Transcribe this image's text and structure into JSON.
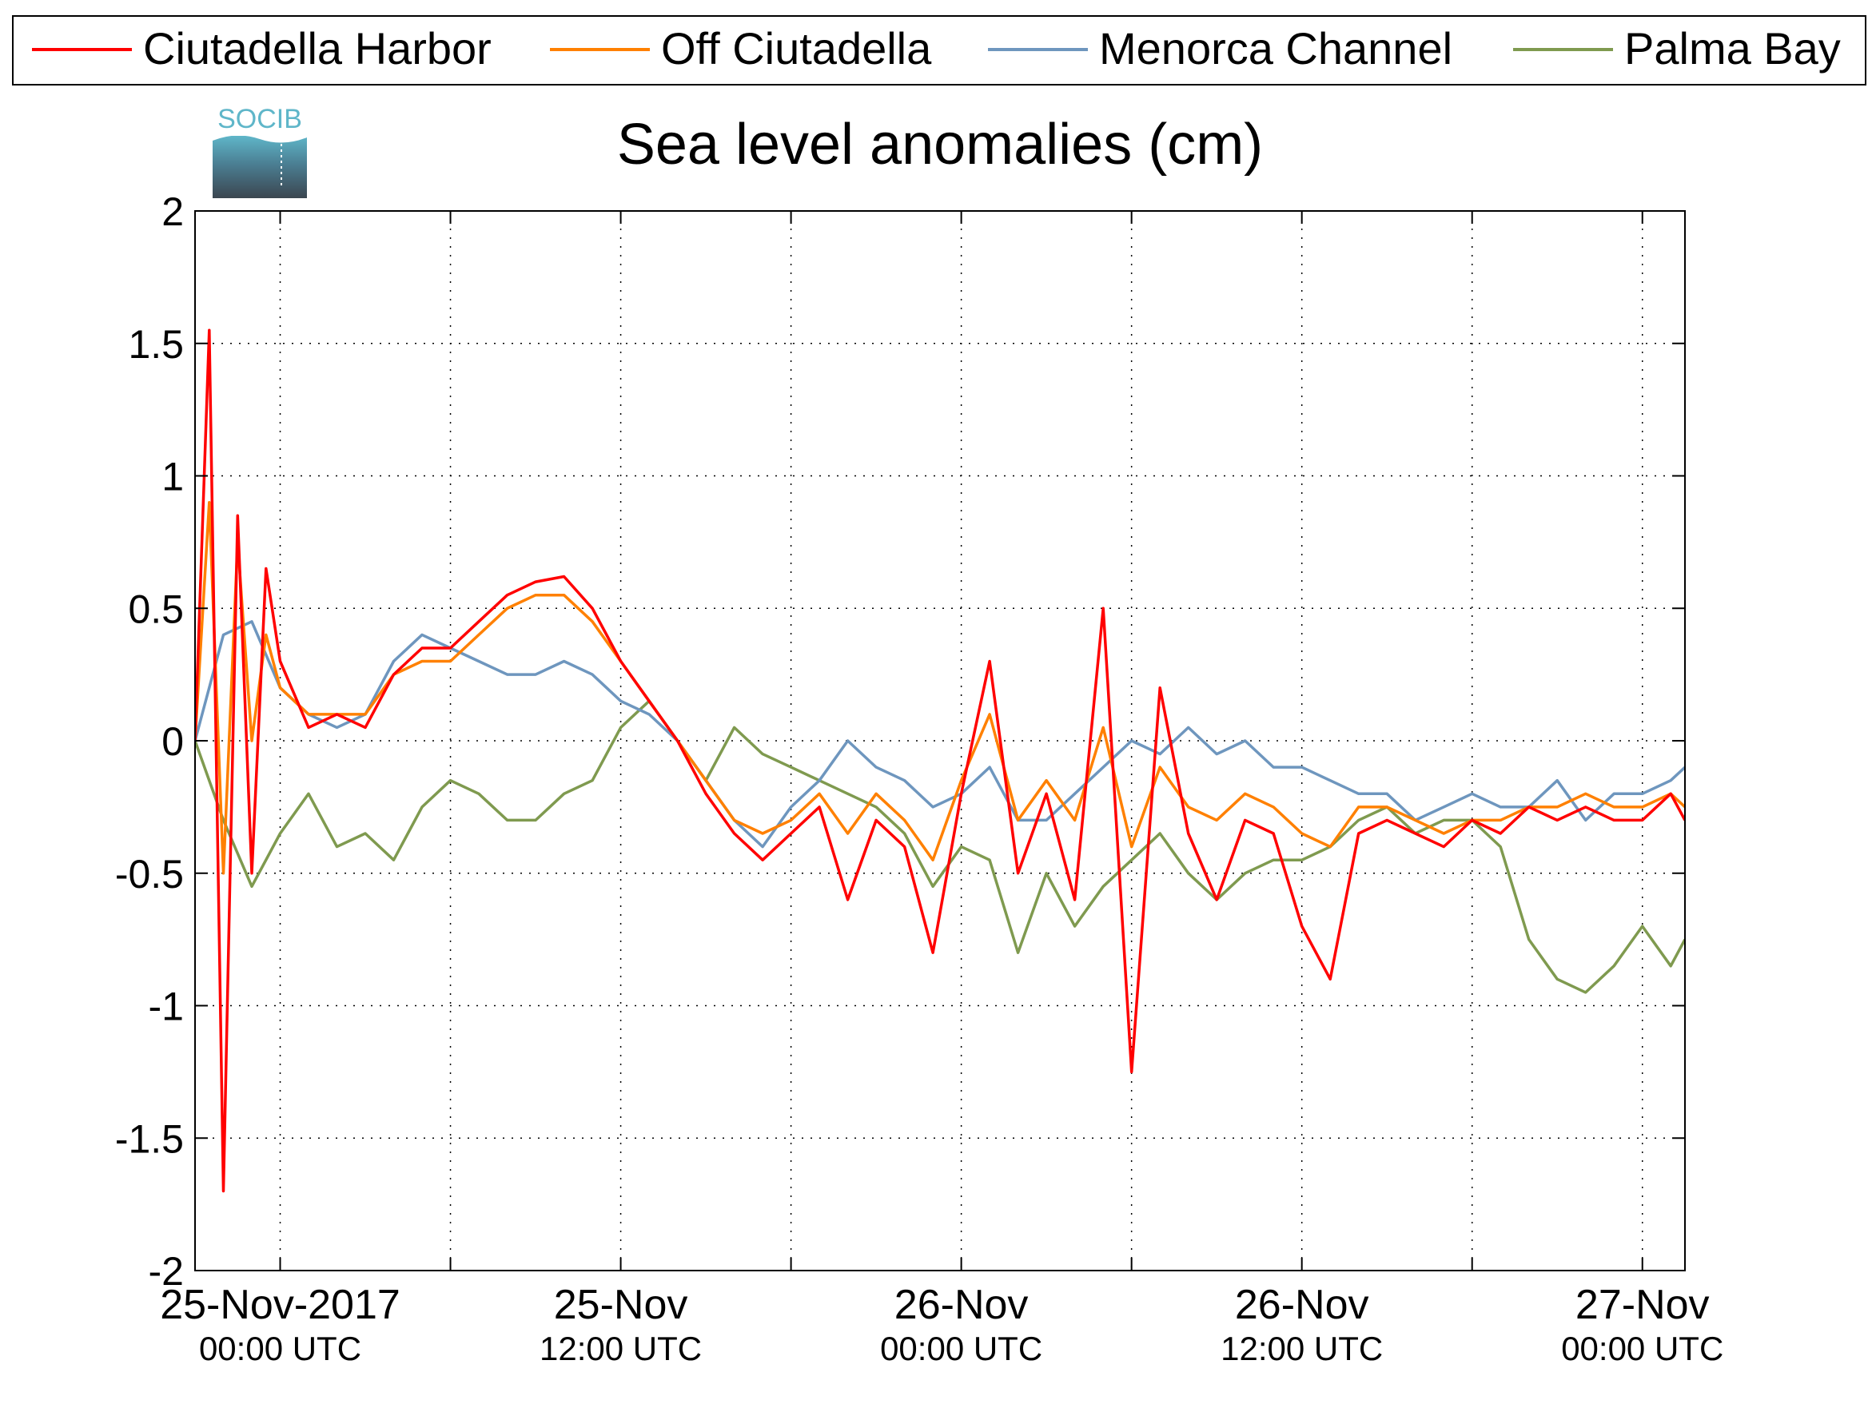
{
  "chart_data": {
    "type": "line",
    "title": "Sea level anomalies (cm)",
    "xlabel": "",
    "ylabel": "",
    "ylim": [
      -2,
      2
    ],
    "xlim": [
      "2017-11-24 21:00 UTC",
      "2017-11-27 01:30 UTC"
    ],
    "yticks": [
      -2,
      -1.5,
      -1,
      -0.5,
      0,
      0.5,
      1,
      1.5,
      2
    ],
    "ytick_labels": [
      "-2",
      "-1.5",
      "-1",
      "-0.5",
      "0",
      "0.5",
      "1",
      "1.5",
      "2"
    ],
    "xtick_labels": [
      {
        "date": "25-Nov-2017",
        "time": "00:00 UTC"
      },
      {
        "date": "25-Nov",
        "time": "12:00 UTC"
      },
      {
        "date": "26-Nov",
        "time": "00:00 UTC"
      },
      {
        "date": "26-Nov",
        "time": "12:00 UTC"
      },
      {
        "date": "27-Nov",
        "time": "00:00 UTC"
      }
    ],
    "grid": true,
    "legend_position": "top",
    "logo_text": "SOCIB",
    "series": [
      {
        "name": "Ciutadella Harbor",
        "color": "#ff0000",
        "x": [
          "2017-11-24 21:00",
          "2017-11-24 21:30",
          "2017-11-24 22:00",
          "2017-11-24 22:30",
          "2017-11-24 23:00",
          "2017-11-24 23:30",
          "2017-11-25 00:00",
          "2017-11-25 01:00",
          "2017-11-25 02:00",
          "2017-11-25 03:00",
          "2017-11-25 04:00",
          "2017-11-25 05:00",
          "2017-11-25 06:00",
          "2017-11-25 07:00",
          "2017-11-25 08:00",
          "2017-11-25 09:00",
          "2017-11-25 10:00",
          "2017-11-25 11:00",
          "2017-11-25 12:00",
          "2017-11-25 13:00",
          "2017-11-25 14:00",
          "2017-11-25 15:00",
          "2017-11-25 16:00",
          "2017-11-25 17:00",
          "2017-11-25 18:00",
          "2017-11-25 19:00",
          "2017-11-25 20:00",
          "2017-11-25 21:00",
          "2017-11-25 22:00",
          "2017-11-25 23:00",
          "2017-11-26 00:00",
          "2017-11-26 01:00",
          "2017-11-26 02:00",
          "2017-11-26 03:00",
          "2017-11-26 04:00",
          "2017-11-26 05:00",
          "2017-11-26 06:00",
          "2017-11-26 07:00",
          "2017-11-26 08:00",
          "2017-11-26 09:00",
          "2017-11-26 10:00",
          "2017-11-26 11:00",
          "2017-11-26 12:00",
          "2017-11-26 13:00",
          "2017-11-26 14:00",
          "2017-11-26 15:00",
          "2017-11-26 16:00",
          "2017-11-26 17:00",
          "2017-11-26 18:00",
          "2017-11-26 19:00",
          "2017-11-26 20:00",
          "2017-11-26 21:00",
          "2017-11-26 22:00",
          "2017-11-26 23:00",
          "2017-11-27 00:00",
          "2017-11-27 01:00",
          "2017-11-27 01:30"
        ],
        "values": [
          0.0,
          1.55,
          -1.7,
          0.85,
          -0.5,
          0.65,
          0.3,
          0.05,
          0.1,
          0.05,
          0.25,
          0.35,
          0.35,
          0.45,
          0.55,
          0.6,
          0.62,
          0.5,
          0.3,
          0.15,
          0.0,
          -0.2,
          -0.35,
          -0.45,
          -0.35,
          -0.25,
          -0.6,
          -0.3,
          -0.4,
          -0.8,
          -0.2,
          0.3,
          -0.5,
          -0.2,
          -0.6,
          0.5,
          -1.25,
          0.2,
          -0.35,
          -0.6,
          -0.3,
          -0.35,
          -0.7,
          -0.9,
          -0.35,
          -0.3,
          -0.35,
          -0.4,
          -0.3,
          -0.35,
          -0.25,
          -0.3,
          -0.25,
          -0.3,
          -0.3,
          -0.2,
          -0.3
        ]
      },
      {
        "name": "Off Ciutadella",
        "color": "#ff8000",
        "x": [
          "2017-11-24 21:00",
          "2017-11-24 21:30",
          "2017-11-24 22:00",
          "2017-11-24 22:30",
          "2017-11-24 23:00",
          "2017-11-24 23:30",
          "2017-11-25 00:00",
          "2017-11-25 01:00",
          "2017-11-25 02:00",
          "2017-11-25 03:00",
          "2017-11-25 04:00",
          "2017-11-25 05:00",
          "2017-11-25 06:00",
          "2017-11-25 07:00",
          "2017-11-25 08:00",
          "2017-11-25 09:00",
          "2017-11-25 10:00",
          "2017-11-25 11:00",
          "2017-11-25 12:00",
          "2017-11-25 13:00",
          "2017-11-25 14:00",
          "2017-11-25 15:00",
          "2017-11-25 16:00",
          "2017-11-25 17:00",
          "2017-11-25 18:00",
          "2017-11-25 19:00",
          "2017-11-25 20:00",
          "2017-11-25 21:00",
          "2017-11-25 22:00",
          "2017-11-25 23:00",
          "2017-11-26 00:00",
          "2017-11-26 01:00",
          "2017-11-26 02:00",
          "2017-11-26 03:00",
          "2017-11-26 04:00",
          "2017-11-26 05:00",
          "2017-11-26 06:00",
          "2017-11-26 07:00",
          "2017-11-26 08:00",
          "2017-11-26 09:00",
          "2017-11-26 10:00",
          "2017-11-26 11:00",
          "2017-11-26 12:00",
          "2017-11-26 13:00",
          "2017-11-26 14:00",
          "2017-11-26 15:00",
          "2017-11-26 16:00",
          "2017-11-26 17:00",
          "2017-11-26 18:00",
          "2017-11-26 19:00",
          "2017-11-26 20:00",
          "2017-11-26 21:00",
          "2017-11-26 22:00",
          "2017-11-26 23:00",
          "2017-11-27 00:00",
          "2017-11-27 01:00",
          "2017-11-27 01:30"
        ],
        "values": [
          0.0,
          0.9,
          -0.5,
          0.75,
          0.0,
          0.4,
          0.2,
          0.1,
          0.1,
          0.1,
          0.25,
          0.3,
          0.3,
          0.4,
          0.5,
          0.55,
          0.55,
          0.45,
          0.3,
          0.15,
          0.0,
          -0.15,
          -0.3,
          -0.35,
          -0.3,
          -0.2,
          -0.35,
          -0.2,
          -0.3,
          -0.45,
          -0.15,
          0.1,
          -0.3,
          -0.15,
          -0.3,
          0.05,
          -0.4,
          -0.1,
          -0.25,
          -0.3,
          -0.2,
          -0.25,
          -0.35,
          -0.4,
          -0.25,
          -0.25,
          -0.3,
          -0.35,
          -0.3,
          -0.3,
          -0.25,
          -0.25,
          -0.2,
          -0.25,
          -0.25,
          -0.2,
          -0.25
        ]
      },
      {
        "name": "Menorca Channel",
        "color": "#6e96be",
        "x": [
          "2017-11-24 21:00",
          "2017-11-24 22:00",
          "2017-11-24 23:00",
          "2017-11-25 00:00",
          "2017-11-25 01:00",
          "2017-11-25 02:00",
          "2017-11-25 03:00",
          "2017-11-25 04:00",
          "2017-11-25 05:00",
          "2017-11-25 06:00",
          "2017-11-25 07:00",
          "2017-11-25 08:00",
          "2017-11-25 09:00",
          "2017-11-25 10:00",
          "2017-11-25 11:00",
          "2017-11-25 12:00",
          "2017-11-25 13:00",
          "2017-11-25 14:00",
          "2017-11-25 15:00",
          "2017-11-25 16:00",
          "2017-11-25 17:00",
          "2017-11-25 18:00",
          "2017-11-25 19:00",
          "2017-11-25 20:00",
          "2017-11-25 21:00",
          "2017-11-25 22:00",
          "2017-11-25 23:00",
          "2017-11-26 00:00",
          "2017-11-26 01:00",
          "2017-11-26 02:00",
          "2017-11-26 03:00",
          "2017-11-26 04:00",
          "2017-11-26 05:00",
          "2017-11-26 06:00",
          "2017-11-26 07:00",
          "2017-11-26 08:00",
          "2017-11-26 09:00",
          "2017-11-26 10:00",
          "2017-11-26 11:00",
          "2017-11-26 12:00",
          "2017-11-26 13:00",
          "2017-11-26 14:00",
          "2017-11-26 15:00",
          "2017-11-26 16:00",
          "2017-11-26 17:00",
          "2017-11-26 18:00",
          "2017-11-26 19:00",
          "2017-11-26 20:00",
          "2017-11-26 21:00",
          "2017-11-26 22:00",
          "2017-11-26 23:00",
          "2017-11-27 00:00",
          "2017-11-27 01:00",
          "2017-11-27 01:30"
        ],
        "values": [
          0.0,
          0.4,
          0.45,
          0.2,
          0.1,
          0.05,
          0.1,
          0.3,
          0.4,
          0.35,
          0.3,
          0.25,
          0.25,
          0.3,
          0.25,
          0.15,
          0.1,
          0.0,
          -0.15,
          -0.3,
          -0.4,
          -0.25,
          -0.15,
          0.0,
          -0.1,
          -0.15,
          -0.25,
          -0.2,
          -0.1,
          -0.3,
          -0.3,
          -0.2,
          -0.1,
          0.0,
          -0.05,
          0.05,
          -0.05,
          0.0,
          -0.1,
          -0.1,
          -0.15,
          -0.2,
          -0.2,
          -0.3,
          -0.25,
          -0.2,
          -0.25,
          -0.25,
          -0.15,
          -0.3,
          -0.2,
          -0.2,
          -0.15,
          -0.1
        ]
      },
      {
        "name": "Palma Bay",
        "color": "#7f9a4f",
        "x": [
          "2017-11-24 21:00",
          "2017-11-24 22:00",
          "2017-11-24 23:00",
          "2017-11-25 00:00",
          "2017-11-25 01:00",
          "2017-11-25 02:00",
          "2017-11-25 03:00",
          "2017-11-25 04:00",
          "2017-11-25 05:00",
          "2017-11-25 06:00",
          "2017-11-25 07:00",
          "2017-11-25 08:00",
          "2017-11-25 09:00",
          "2017-11-25 10:00",
          "2017-11-25 11:00",
          "2017-11-25 12:00",
          "2017-11-25 13:00",
          "2017-11-25 14:00",
          "2017-11-25 15:00",
          "2017-11-25 16:00",
          "2017-11-25 17:00",
          "2017-11-25 18:00",
          "2017-11-25 19:00",
          "2017-11-25 20:00",
          "2017-11-25 21:00",
          "2017-11-25 22:00",
          "2017-11-25 23:00",
          "2017-11-26 00:00",
          "2017-11-26 01:00",
          "2017-11-26 02:00",
          "2017-11-26 03:00",
          "2017-11-26 04:00",
          "2017-11-26 05:00",
          "2017-11-26 06:00",
          "2017-11-26 07:00",
          "2017-11-26 08:00",
          "2017-11-26 09:00",
          "2017-11-26 10:00",
          "2017-11-26 11:00",
          "2017-11-26 12:00",
          "2017-11-26 13:00",
          "2017-11-26 14:00",
          "2017-11-26 15:00",
          "2017-11-26 16:00",
          "2017-11-26 17:00",
          "2017-11-26 18:00",
          "2017-11-26 19:00",
          "2017-11-26 20:00",
          "2017-11-26 21:00",
          "2017-11-26 22:00",
          "2017-11-26 23:00",
          "2017-11-27 00:00",
          "2017-11-27 01:00",
          "2017-11-27 01:30"
        ],
        "values": [
          0.0,
          -0.3,
          -0.55,
          -0.35,
          -0.2,
          -0.4,
          -0.35,
          -0.45,
          -0.25,
          -0.15,
          -0.2,
          -0.3,
          -0.3,
          -0.2,
          -0.15,
          0.05,
          0.15,
          0.0,
          -0.15,
          0.05,
          -0.05,
          -0.1,
          -0.15,
          -0.2,
          -0.25,
          -0.35,
          -0.55,
          -0.4,
          -0.45,
          -0.8,
          -0.5,
          -0.7,
          -0.55,
          -0.45,
          -0.35,
          -0.5,
          -0.6,
          -0.5,
          -0.45,
          -0.45,
          -0.4,
          -0.3,
          -0.25,
          -0.35,
          -0.3,
          -0.3,
          -0.4,
          -0.75,
          -0.9,
          -0.95,
          -0.85,
          -0.7,
          -0.85,
          -0.75
        ]
      }
    ]
  }
}
